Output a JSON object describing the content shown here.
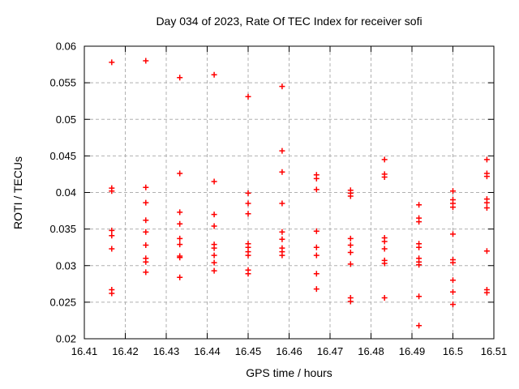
{
  "page": {
    "background": "#ffffff"
  },
  "chart_data": {
    "type": "scatter",
    "title": "Day 034 of 2023, Rate Of TEC Index for receiver sofi",
    "xlabel": "GPS time / hours",
    "ylabel": "ROTI / TECUs",
    "xlim": [
      16.41,
      16.51
    ],
    "ylim": [
      0.02,
      0.06
    ],
    "xtick_values": [
      16.41,
      16.42,
      16.43,
      16.44,
      16.45,
      16.46,
      16.47,
      16.48,
      16.49,
      16.5,
      16.51
    ],
    "xtick_labels": [
      "16.41",
      "16.42",
      "16.43",
      "16.44",
      "16.45",
      "16.46",
      "16.47",
      "16.48",
      "16.49",
      "16.5",
      "16.51"
    ],
    "ytick_values": [
      0.02,
      0.025,
      0.03,
      0.035,
      0.04,
      0.045,
      0.05,
      0.055,
      0.06
    ],
    "ytick_labels": [
      "0.02",
      "0.025",
      "0.03",
      "0.035",
      "0.04",
      "0.045",
      "0.05",
      "0.055",
      "0.06"
    ],
    "grid": true,
    "grid_style": "dashed",
    "legend_position": "none",
    "marker": "plus",
    "colors": {
      "marker": "#ff0000",
      "grid": "#b0b0b0",
      "axis": "#000000",
      "text": "#000000"
    },
    "series": [
      {
        "name": "ROTI",
        "points": [
          [
            16.4167,
            0.0578
          ],
          [
            16.4167,
            0.0406
          ],
          [
            16.4167,
            0.0402
          ],
          [
            16.4167,
            0.0348
          ],
          [
            16.4167,
            0.0341
          ],
          [
            16.4167,
            0.0323
          ],
          [
            16.4167,
            0.0267
          ],
          [
            16.4167,
            0.0262
          ],
          [
            16.425,
            0.058
          ],
          [
            16.425,
            0.0407
          ],
          [
            16.425,
            0.0386
          ],
          [
            16.425,
            0.0362
          ],
          [
            16.425,
            0.0346
          ],
          [
            16.425,
            0.0328
          ],
          [
            16.425,
            0.031
          ],
          [
            16.425,
            0.0305
          ],
          [
            16.425,
            0.0291
          ],
          [
            16.4333,
            0.0557
          ],
          [
            16.4333,
            0.0426
          ],
          [
            16.4333,
            0.0373
          ],
          [
            16.4333,
            0.0357
          ],
          [
            16.4333,
            0.0337
          ],
          [
            16.4333,
            0.0329
          ],
          [
            16.4333,
            0.0313
          ],
          [
            16.4333,
            0.0311
          ],
          [
            16.4333,
            0.0284
          ],
          [
            16.4417,
            0.0561
          ],
          [
            16.4417,
            0.0415
          ],
          [
            16.4417,
            0.037
          ],
          [
            16.4417,
            0.0354
          ],
          [
            16.4417,
            0.0329
          ],
          [
            16.4417,
            0.0324
          ],
          [
            16.4417,
            0.0314
          ],
          [
            16.4417,
            0.0304
          ],
          [
            16.4417,
            0.0293
          ],
          [
            16.45,
            0.0531
          ],
          [
            16.45,
            0.0399
          ],
          [
            16.45,
            0.0385
          ],
          [
            16.45,
            0.0371
          ],
          [
            16.45,
            0.033
          ],
          [
            16.45,
            0.0325
          ],
          [
            16.45,
            0.0319
          ],
          [
            16.45,
            0.0314
          ],
          [
            16.45,
            0.0294
          ],
          [
            16.45,
            0.0289
          ],
          [
            16.4583,
            0.0545
          ],
          [
            16.4583,
            0.0457
          ],
          [
            16.4583,
            0.0428
          ],
          [
            16.4583,
            0.0385
          ],
          [
            16.4583,
            0.0346
          ],
          [
            16.4583,
            0.0336
          ],
          [
            16.4583,
            0.0324
          ],
          [
            16.4583,
            0.0319
          ],
          [
            16.4583,
            0.0314
          ],
          [
            16.4667,
            0.0424
          ],
          [
            16.4667,
            0.0419
          ],
          [
            16.4667,
            0.0404
          ],
          [
            16.4667,
            0.0347
          ],
          [
            16.4667,
            0.0325
          ],
          [
            16.4667,
            0.0314
          ],
          [
            16.4667,
            0.0289
          ],
          [
            16.4667,
            0.0268
          ],
          [
            16.475,
            0.0403
          ],
          [
            16.475,
            0.0399
          ],
          [
            16.475,
            0.0395
          ],
          [
            16.475,
            0.0337
          ],
          [
            16.475,
            0.0328
          ],
          [
            16.475,
            0.0318
          ],
          [
            16.475,
            0.0302
          ],
          [
            16.475,
            0.0256
          ],
          [
            16.475,
            0.0251
          ],
          [
            16.4833,
            0.0445
          ],
          [
            16.4833,
            0.0425
          ],
          [
            16.4833,
            0.0421
          ],
          [
            16.4833,
            0.0338
          ],
          [
            16.4833,
            0.0333
          ],
          [
            16.4833,
            0.0323
          ],
          [
            16.4833,
            0.0307
          ],
          [
            16.4833,
            0.0303
          ],
          [
            16.4833,
            0.0256
          ],
          [
            16.4917,
            0.0383
          ],
          [
            16.4917,
            0.0365
          ],
          [
            16.4917,
            0.036
          ],
          [
            16.4917,
            0.033
          ],
          [
            16.4917,
            0.0325
          ],
          [
            16.4917,
            0.031
          ],
          [
            16.4917,
            0.0305
          ],
          [
            16.4917,
            0.0301
          ],
          [
            16.4917,
            0.0258
          ],
          [
            16.4917,
            0.0218
          ],
          [
            16.5,
            0.0402
          ],
          [
            16.5,
            0.039
          ],
          [
            16.5,
            0.0385
          ],
          [
            16.5,
            0.038
          ],
          [
            16.5,
            0.0343
          ],
          [
            16.5,
            0.0308
          ],
          [
            16.5,
            0.0304
          ],
          [
            16.5,
            0.028
          ],
          [
            16.5,
            0.0264
          ],
          [
            16.5,
            0.0247
          ],
          [
            16.5083,
            0.0445
          ],
          [
            16.5083,
            0.0426
          ],
          [
            16.5083,
            0.0422
          ],
          [
            16.5083,
            0.0391
          ],
          [
            16.5083,
            0.0386
          ],
          [
            16.5083,
            0.0379
          ],
          [
            16.5083,
            0.032
          ],
          [
            16.5083,
            0.0267
          ],
          [
            16.5083,
            0.0263
          ]
        ]
      }
    ]
  }
}
